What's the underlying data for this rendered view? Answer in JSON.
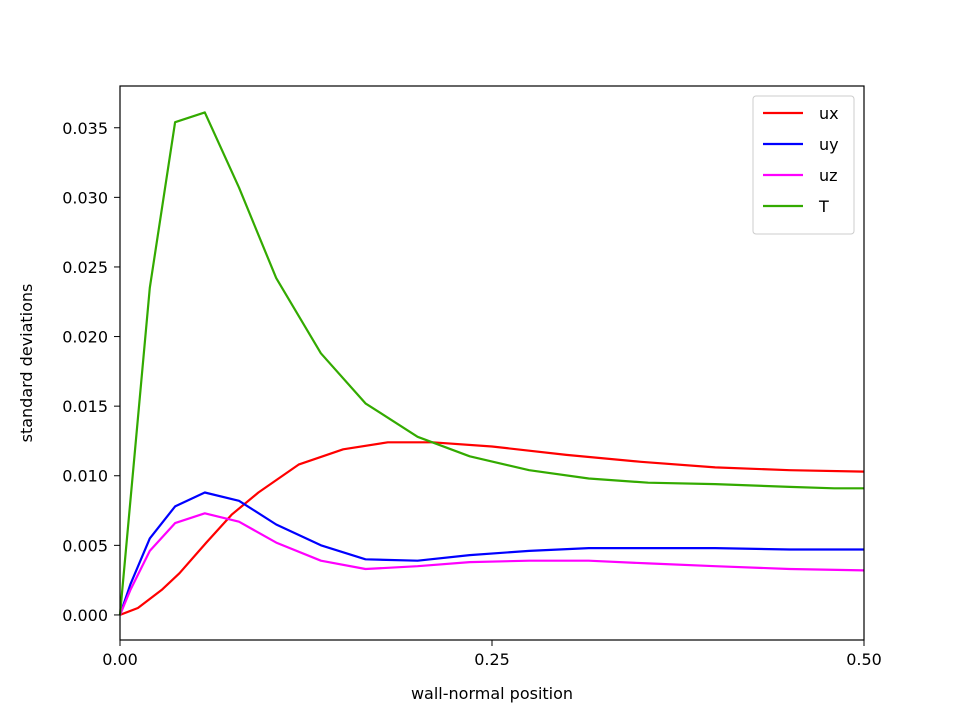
{
  "chart_data": {
    "type": "line",
    "xlabel": "wall-normal position",
    "ylabel": "standard deviations",
    "xlim": [
      0.0,
      0.5
    ],
    "ylim": [
      -0.0018,
      0.038
    ],
    "x_ticks": [
      {
        "value": 0.0,
        "label": "0.00"
      },
      {
        "value": 0.25,
        "label": "0.25"
      },
      {
        "value": 0.5,
        "label": "0.50"
      }
    ],
    "y_ticks": [
      {
        "value": 0.0,
        "label": "0.000"
      },
      {
        "value": 0.005,
        "label": "0.005"
      },
      {
        "value": 0.01,
        "label": "0.010"
      },
      {
        "value": 0.015,
        "label": "0.015"
      },
      {
        "value": 0.02,
        "label": "0.020"
      },
      {
        "value": 0.025,
        "label": "0.025"
      },
      {
        "value": 0.03,
        "label": "0.030"
      },
      {
        "value": 0.035,
        "label": "0.035"
      }
    ],
    "grid": false,
    "legend_position": "top-right",
    "series": [
      {
        "name": "ux",
        "color": "#ff0000",
        "points": [
          [
            0.0,
            0.0
          ],
          [
            0.012,
            0.0005
          ],
          [
            0.028,
            0.0018
          ],
          [
            0.04,
            0.003
          ],
          [
            0.058,
            0.0052
          ],
          [
            0.075,
            0.0072
          ],
          [
            0.093,
            0.0088
          ],
          [
            0.12,
            0.0108
          ],
          [
            0.15,
            0.0119
          ],
          [
            0.18,
            0.0124
          ],
          [
            0.21,
            0.0124
          ],
          [
            0.25,
            0.0121
          ],
          [
            0.3,
            0.0115
          ],
          [
            0.35,
            0.011
          ],
          [
            0.4,
            0.0106
          ],
          [
            0.45,
            0.0104
          ],
          [
            0.5,
            0.0103
          ]
        ]
      },
      {
        "name": "uy",
        "color": "#0000ff",
        "points": [
          [
            0.0,
            0.0
          ],
          [
            0.007,
            0.0022
          ],
          [
            0.02,
            0.0055
          ],
          [
            0.037,
            0.0078
          ],
          [
            0.057,
            0.0088
          ],
          [
            0.08,
            0.0082
          ],
          [
            0.105,
            0.0065
          ],
          [
            0.135,
            0.005
          ],
          [
            0.165,
            0.004
          ],
          [
            0.2,
            0.0039
          ],
          [
            0.235,
            0.0043
          ],
          [
            0.275,
            0.0046
          ],
          [
            0.315,
            0.0048
          ],
          [
            0.355,
            0.0048
          ],
          [
            0.4,
            0.0048
          ],
          [
            0.45,
            0.0047
          ],
          [
            0.5,
            0.0047
          ]
        ]
      },
      {
        "name": "uz",
        "color": "#ff00ff",
        "points": [
          [
            0.0,
            0.0
          ],
          [
            0.007,
            0.0018
          ],
          [
            0.02,
            0.0046
          ],
          [
            0.037,
            0.0066
          ],
          [
            0.057,
            0.0073
          ],
          [
            0.08,
            0.0067
          ],
          [
            0.105,
            0.0052
          ],
          [
            0.135,
            0.0039
          ],
          [
            0.165,
            0.0033
          ],
          [
            0.2,
            0.0035
          ],
          [
            0.235,
            0.0038
          ],
          [
            0.275,
            0.0039
          ],
          [
            0.315,
            0.0039
          ],
          [
            0.355,
            0.0037
          ],
          [
            0.4,
            0.0035
          ],
          [
            0.45,
            0.0033
          ],
          [
            0.5,
            0.0032
          ]
        ]
      },
      {
        "name": "T",
        "color": "#33aa00",
        "points": [
          [
            0.0,
            0.0
          ],
          [
            0.02,
            0.0235
          ],
          [
            0.037,
            0.0354
          ],
          [
            0.057,
            0.0361
          ],
          [
            0.08,
            0.0307
          ],
          [
            0.105,
            0.0242
          ],
          [
            0.135,
            0.0188
          ],
          [
            0.165,
            0.0152
          ],
          [
            0.2,
            0.0128
          ],
          [
            0.235,
            0.0114
          ],
          [
            0.275,
            0.0104
          ],
          [
            0.315,
            0.0098
          ],
          [
            0.355,
            0.0095
          ],
          [
            0.4,
            0.0094
          ],
          [
            0.45,
            0.0092
          ],
          [
            0.48,
            0.0091
          ],
          [
            0.5,
            0.0091
          ]
        ]
      }
    ]
  }
}
